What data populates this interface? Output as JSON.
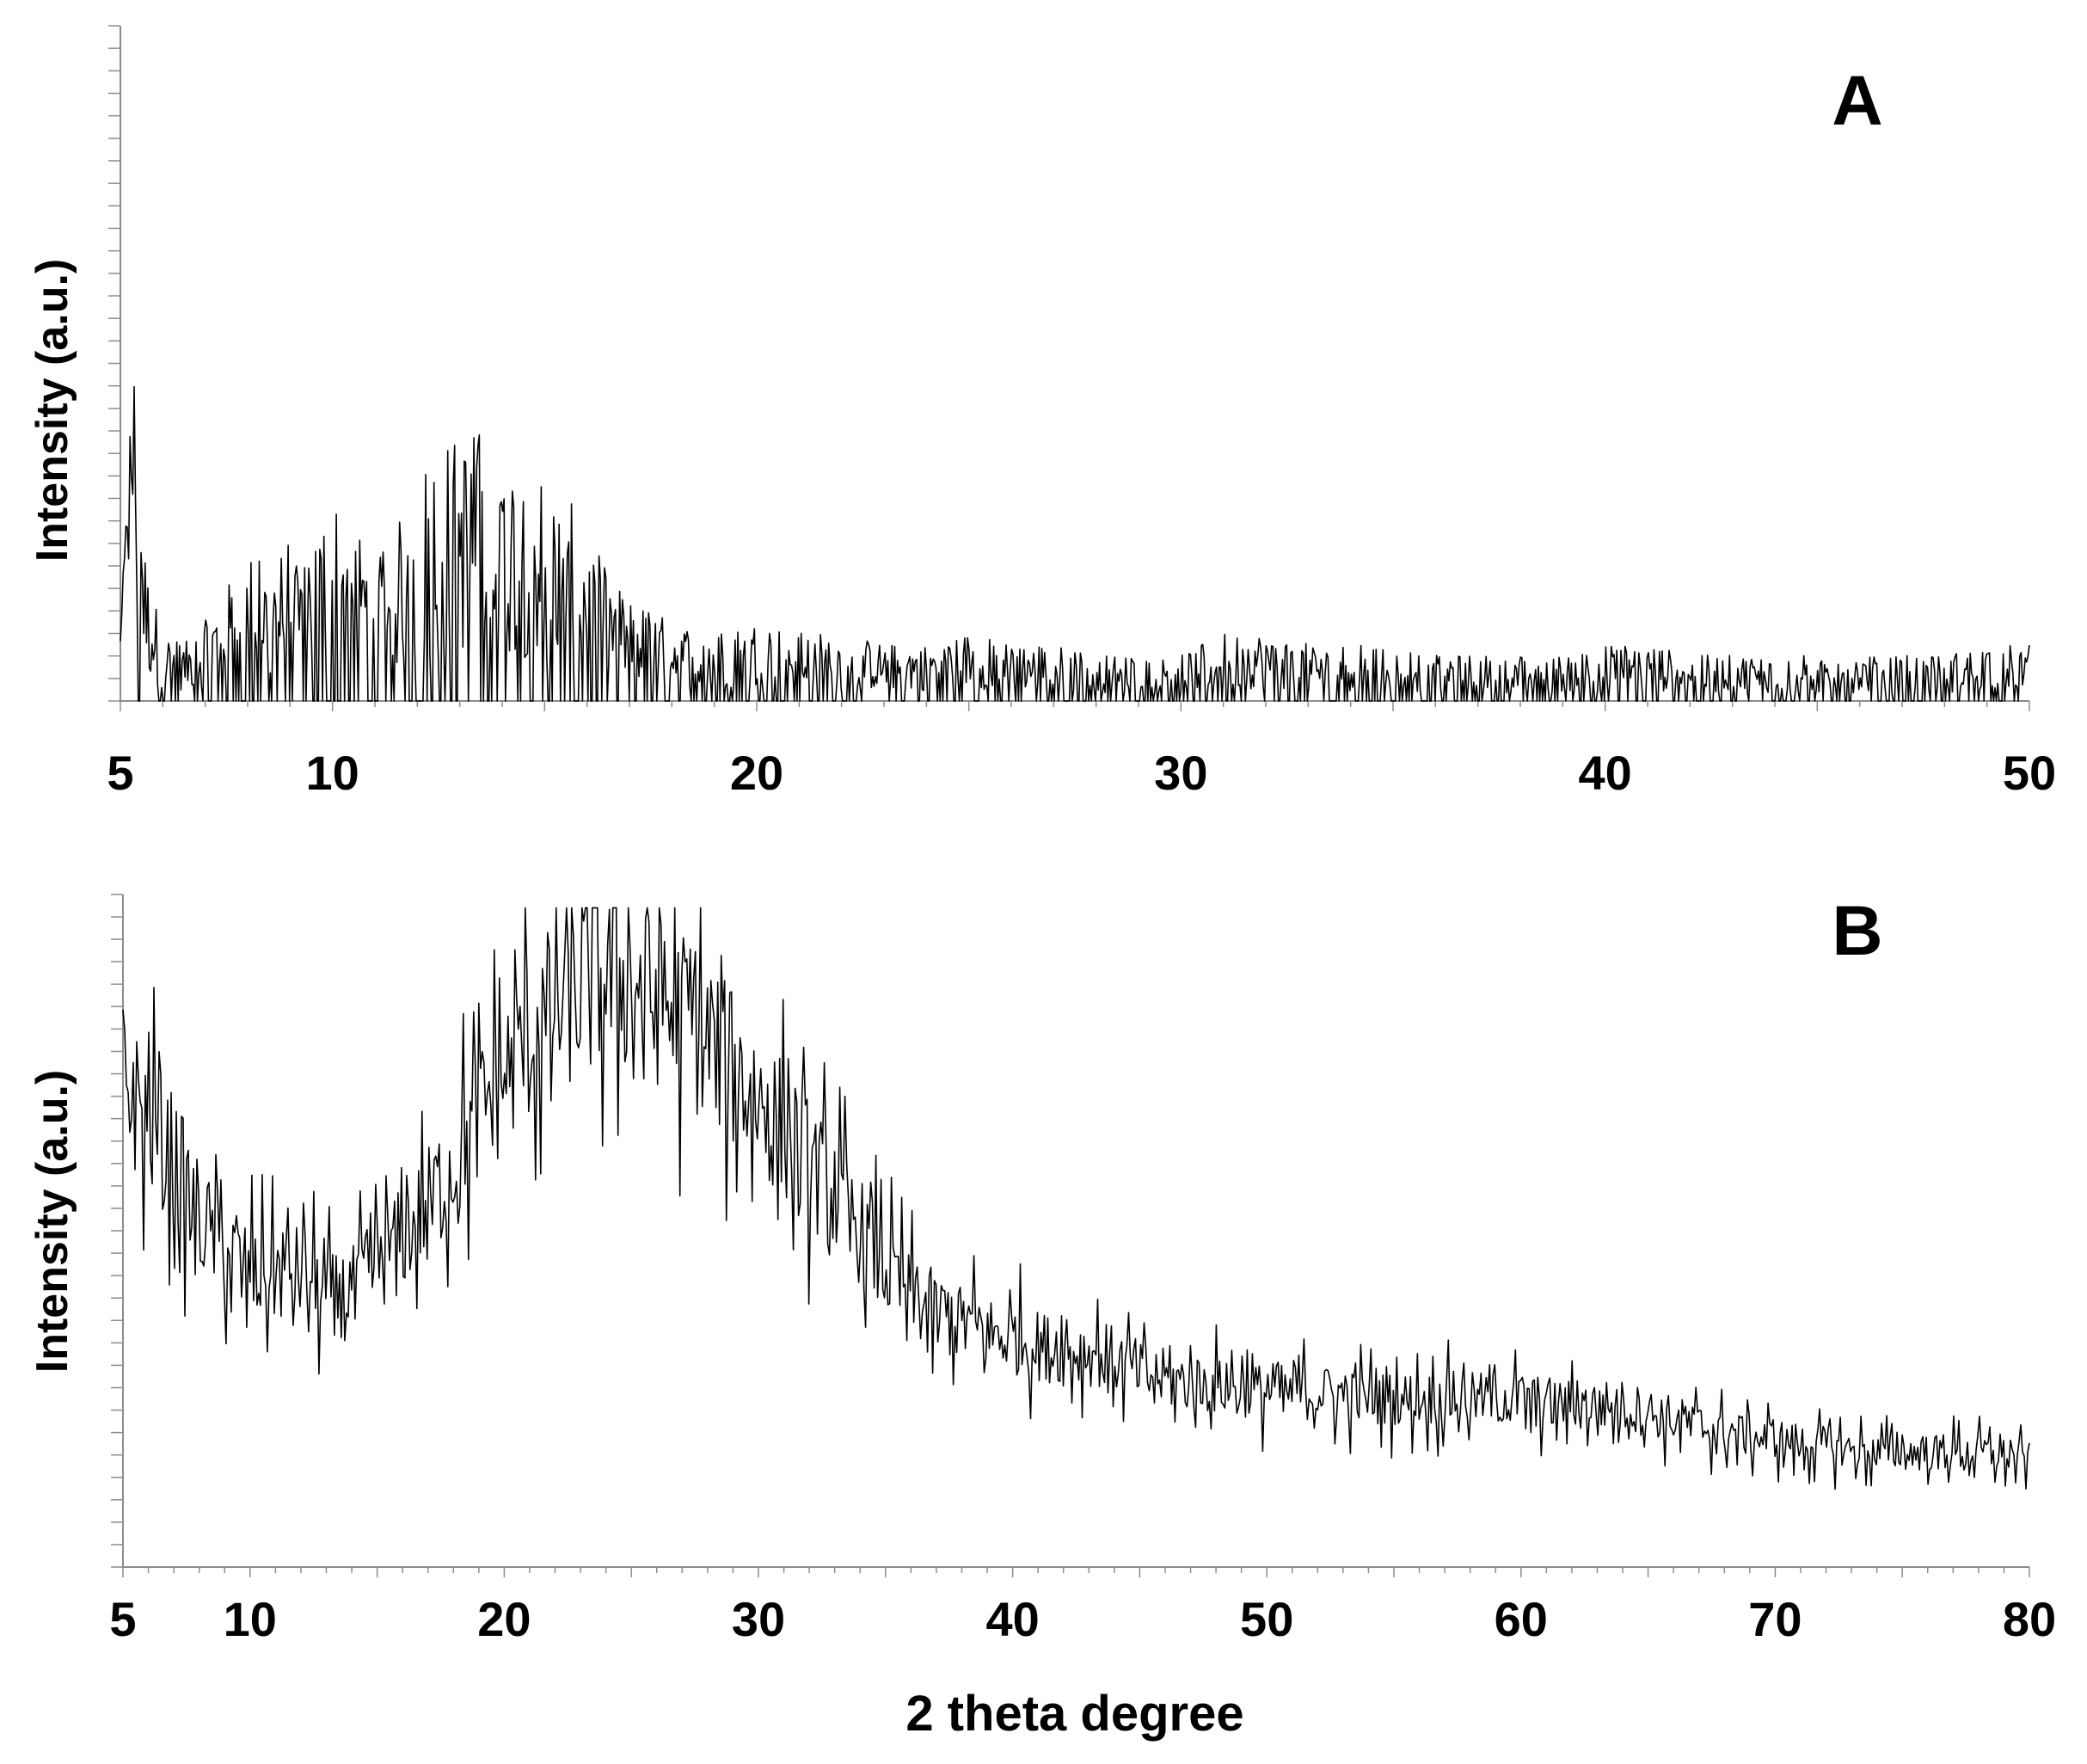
{
  "chart_data": [
    {
      "type": "line",
      "panel_label": "A",
      "xlabel": "",
      "ylabel": "Intensity (a.u.)",
      "xlim": [
        5,
        50
      ],
      "x_ticks": [
        5,
        10,
        20,
        30,
        40,
        50
      ],
      "y_ticks_labeled": false,
      "grid": false,
      "series": [
        {
          "x": [
            5,
            5.3,
            5.6,
            6,
            6.5,
            7,
            7.5,
            8,
            8.5,
            9,
            9.5,
            10,
            10.5,
            11,
            11.5,
            12,
            12.5,
            13,
            13.5,
            14,
            14.5,
            15,
            15.5,
            16,
            16.5,
            17,
            17.5,
            18,
            19,
            20,
            21,
            22,
            23,
            24,
            25,
            26,
            27,
            28,
            29,
            30,
            31,
            32,
            33,
            34,
            35,
            36,
            37,
            38,
            39,
            40,
            41,
            42,
            43,
            44,
            45,
            46,
            47,
            48,
            49,
            50
          ],
          "y": [
            8,
            38,
            12,
            6,
            5,
            7,
            10,
            13,
            12,
            14,
            15,
            18,
            16,
            12,
            15,
            20,
            23,
            23,
            24,
            22,
            21,
            20,
            18,
            15,
            11,
            9,
            8,
            7,
            6,
            7,
            6,
            6,
            5,
            5,
            6,
            5,
            5,
            4,
            4,
            4,
            6,
            6,
            5,
            5,
            5,
            4,
            4,
            4,
            4,
            5,
            5,
            4,
            4,
            4,
            4,
            4,
            4,
            4,
            5,
            5
          ]
        }
      ]
    },
    {
      "type": "line",
      "panel_label": "B",
      "xlabel": "2 theta degree",
      "ylabel": "Intensity (a.u.)",
      "xlim": [
        5,
        80
      ],
      "x_ticks": [
        5,
        10,
        20,
        30,
        40,
        50,
        60,
        70,
        80
      ],
      "y_ticks_labeled": false,
      "grid": false,
      "series": [
        {
          "x": [
            5,
            6,
            7,
            8,
            9,
            10,
            11,
            12,
            13,
            14,
            15,
            16,
            17,
            18,
            19,
            20,
            21,
            22,
            23,
            24,
            25,
            26,
            27,
            28,
            29,
            30,
            31,
            32,
            33,
            34,
            35,
            36,
            37,
            38,
            39,
            40,
            41,
            42,
            43,
            44,
            45,
            46,
            48,
            50,
            52,
            54,
            56,
            58,
            60,
            62,
            64,
            66,
            68,
            70,
            72,
            74,
            76,
            78,
            80
          ],
          "y": [
            72,
            66,
            61,
            52,
            47,
            44,
            43,
            44,
            40,
            41,
            45,
            49,
            54,
            60,
            67,
            73,
            79,
            83,
            86,
            87,
            87,
            85,
            82,
            78,
            74,
            70,
            65,
            60,
            55,
            50,
            44,
            40,
            38,
            36,
            35,
            34,
            33,
            32,
            32,
            31,
            29,
            28,
            27,
            26,
            26,
            25,
            25,
            25,
            25,
            24,
            24,
            22,
            20,
            19,
            18,
            17,
            17,
            17,
            16
          ]
        }
      ]
    }
  ]
}
